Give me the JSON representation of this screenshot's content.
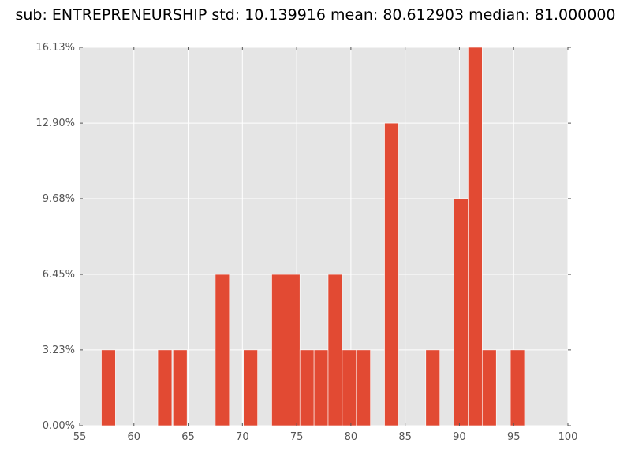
{
  "chart_data": {
    "type": "bar",
    "title": "sub: ENTREPRENEURSHIP std: 10.139916 mean: 80.612903 median: 81.000000",
    "xlabel": "",
    "ylabel": "",
    "xlim": [
      55,
      100
    ],
    "ylim": [
      0,
      16.13
    ],
    "x_ticks": [
      55,
      60,
      65,
      70,
      75,
      80,
      85,
      90,
      95,
      100
    ],
    "y_ticks": [
      0.0,
      3.23,
      6.45,
      9.68,
      12.9,
      16.13
    ],
    "y_tick_labels": [
      "0.00%",
      "3.23%",
      "6.45%",
      "9.68%",
      "12.90%",
      "16.13%"
    ],
    "grid": true,
    "bar_color": "#e24a33",
    "background_color": "#e5e5e5",
    "bins": [
      {
        "start": 57.0,
        "end": 58.3,
        "value": 3.23
      },
      {
        "start": 62.2,
        "end": 63.5,
        "value": 3.23
      },
      {
        "start": 63.6,
        "end": 64.9,
        "value": 3.23
      },
      {
        "start": 67.5,
        "end": 68.8,
        "value": 6.45
      },
      {
        "start": 70.1,
        "end": 71.4,
        "value": 3.23
      },
      {
        "start": 72.7,
        "end": 74.0,
        "value": 6.45
      },
      {
        "start": 74.0,
        "end": 75.3,
        "value": 6.45
      },
      {
        "start": 75.3,
        "end": 76.6,
        "value": 3.23
      },
      {
        "start": 76.6,
        "end": 77.9,
        "value": 3.23
      },
      {
        "start": 77.9,
        "end": 79.2,
        "value": 6.45
      },
      {
        "start": 79.2,
        "end": 80.5,
        "value": 3.23
      },
      {
        "start": 80.5,
        "end": 81.8,
        "value": 3.23
      },
      {
        "start": 83.1,
        "end": 84.4,
        "value": 12.9
      },
      {
        "start": 86.9,
        "end": 88.2,
        "value": 3.23
      },
      {
        "start": 89.5,
        "end": 90.8,
        "value": 9.68
      },
      {
        "start": 90.8,
        "end": 92.1,
        "value": 16.13
      },
      {
        "start": 92.1,
        "end": 93.4,
        "value": 3.23
      },
      {
        "start": 94.7,
        "end": 96.0,
        "value": 3.23
      }
    ]
  }
}
